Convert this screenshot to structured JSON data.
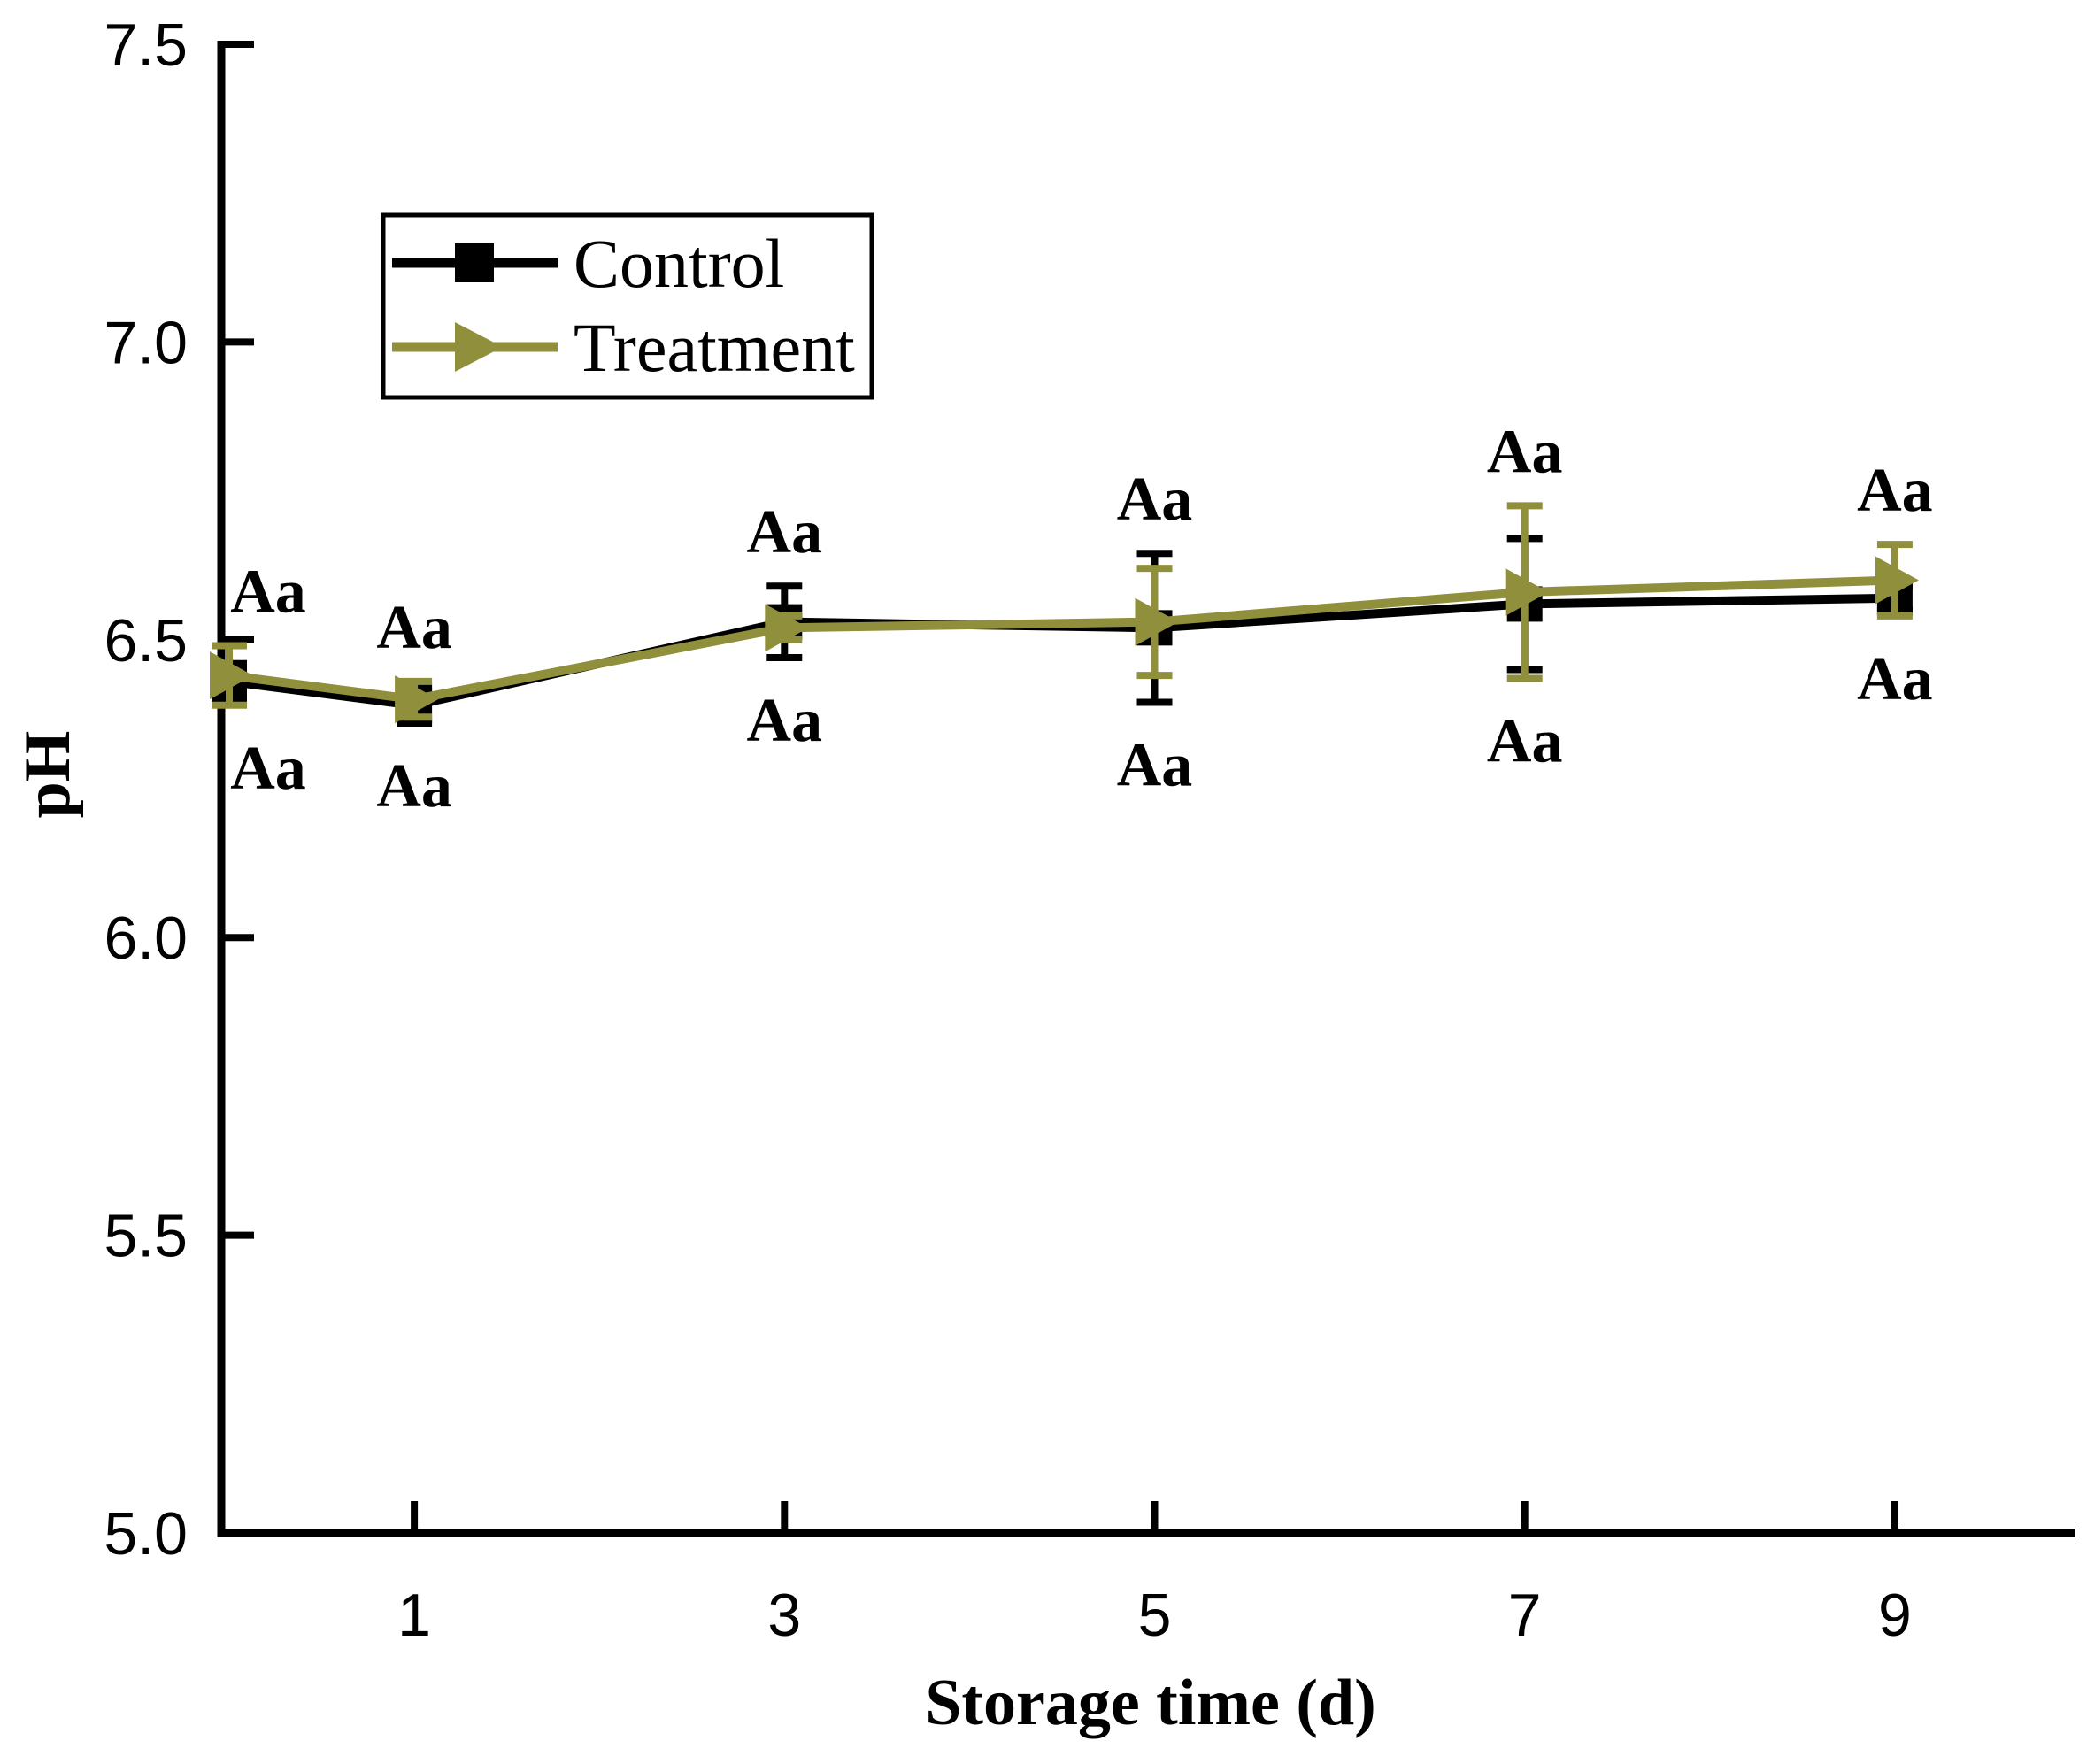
{
  "figure_background": "#ffffff",
  "accent_colors": {
    "control_series": "#000000",
    "treatment_series": "#8f8f3c"
  },
  "chart_data": {
    "type": "line",
    "title": "",
    "xlabel": "Storage time (d)",
    "ylabel": "pH",
    "x": [
      0,
      1,
      3,
      5,
      7,
      9
    ],
    "x_tick_values": [
      1,
      3,
      5,
      7,
      9
    ],
    "x_tick_labels": [
      "1",
      "3",
      "5",
      "7",
      "9"
    ],
    "y_tick_values": [
      5.0,
      5.5,
      6.0,
      6.5,
      7.0,
      7.5
    ],
    "y_tick_labels": [
      "5.0",
      "5.5",
      "6.0",
      "6.5",
      "7.0",
      "7.5"
    ],
    "xlim": [
      0,
      9.97
    ],
    "ylim": [
      5.0,
      7.5
    ],
    "grid": false,
    "legend_position": "top-left-inside",
    "series": [
      {
        "name": "Control",
        "color": "#000000",
        "marker": "square",
        "values": [
          6.43,
          6.39,
          6.53,
          6.52,
          6.56,
          6.57
        ],
        "errors": [
          0.03,
          0.03,
          0.06,
          0.125,
          0.11,
          0.02
        ]
      },
      {
        "name": "Treatment",
        "color": "#8f8f3c",
        "marker": "triangle-right",
        "values": [
          6.44,
          6.4,
          6.52,
          6.53,
          6.58,
          6.6
        ],
        "errors": [
          0.05,
          0.03,
          0.02,
          0.09,
          0.145,
          0.06
        ]
      }
    ],
    "point_annotations": {
      "above": [
        "Aa",
        "Aa",
        "Aa",
        "Aa",
        "Aa",
        "Aa"
      ],
      "below": [
        "Aa",
        "Aa",
        "Aa",
        "Aa",
        "Aa",
        "Aa"
      ]
    }
  },
  "legend": {
    "items": [
      {
        "label": "Control",
        "marker": "square",
        "color": "#000000"
      },
      {
        "label": "Treatment",
        "marker": "triangle-right",
        "color": "#8f8f3c"
      }
    ]
  }
}
